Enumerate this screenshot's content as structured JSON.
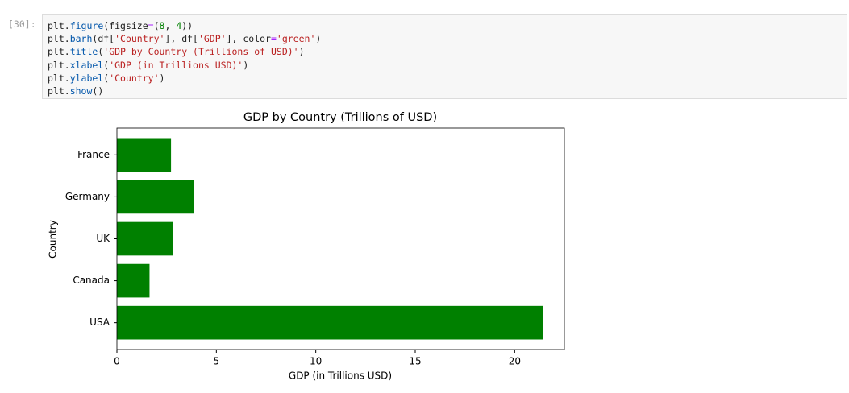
{
  "cell": {
    "prompt": "[30]:",
    "code": [
      "plt.figure(figsize=(8, 4))",
      "plt.barh(df['Country'], df['GDP'], color='green')",
      "plt.title('GDP by Country (Trillions of USD)')",
      "plt.xlabel('GDP (in Trillions USD)')",
      "plt.ylabel('Country')",
      "plt.show()"
    ]
  },
  "chart_data": {
    "type": "bar",
    "orientation": "horizontal",
    "title": "GDP by Country (Trillions of USD)",
    "x_label": "GDP (in Trillions USD)",
    "y_label": "Country",
    "categories": [
      "USA",
      "Canada",
      "UK",
      "Germany",
      "France"
    ],
    "values": [
      21.43,
      1.64,
      2.83,
      3.86,
      2.72
    ],
    "color": "green",
    "xlim": [
      0,
      22.5
    ],
    "xticks": [
      0,
      5,
      10,
      15,
      20
    ],
    "grid": false
  }
}
